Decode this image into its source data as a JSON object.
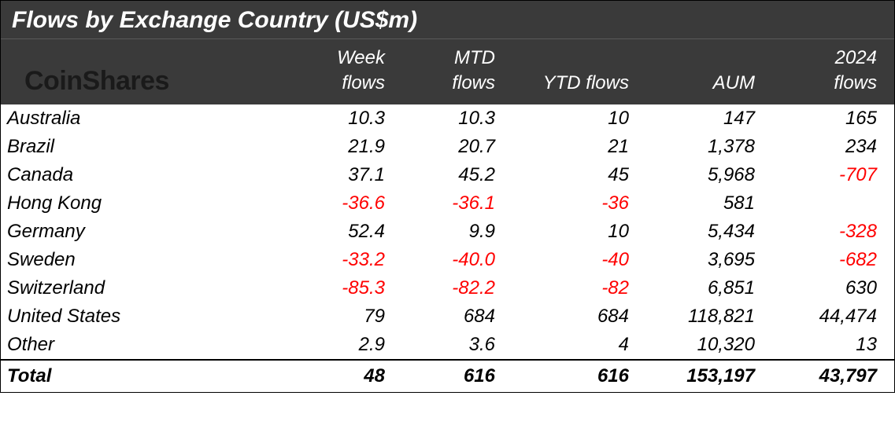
{
  "title": "Flows by Exchange Country (US$m)",
  "logo": "CoinShares",
  "columns": {
    "week": "Week flows",
    "mtd": "MTD flows",
    "ytd": "YTD flows",
    "aum": "AUM",
    "y2024": "2024 flows"
  },
  "colors": {
    "header_bg": "#3a3a3a",
    "header_text": "#ffffff",
    "body_bg": "#ffffff",
    "body_text": "#000000",
    "negative": "#ff0000",
    "logo": "#1a1a1a"
  },
  "typography": {
    "title_fontsize": 30,
    "header_fontsize": 24,
    "body_fontsize": 24,
    "logo_fontsize": 34,
    "style": "italic"
  },
  "col_widths": {
    "label": 355,
    "week": 145,
    "mtd": 140,
    "ytd": 170,
    "aum": 160,
    "y2024": 155
  },
  "rows": [
    {
      "label": "Australia",
      "week": "10.3",
      "mtd": "10.3",
      "ytd": "10",
      "aum": "147",
      "y2024": "165"
    },
    {
      "label": "Brazil",
      "week": "21.9",
      "mtd": "20.7",
      "ytd": "21",
      "aum": "1,378",
      "y2024": "234"
    },
    {
      "label": "Canada",
      "week": "37.1",
      "mtd": "45.2",
      "ytd": "45",
      "aum": "5,968",
      "y2024": "-707"
    },
    {
      "label": "Hong Kong",
      "week": "-36.6",
      "mtd": "-36.1",
      "ytd": "-36",
      "aum": "581",
      "y2024": ""
    },
    {
      "label": "Germany",
      "week": "52.4",
      "mtd": "9.9",
      "ytd": "10",
      "aum": "5,434",
      "y2024": "-328"
    },
    {
      "label": "Sweden",
      "week": "-33.2",
      "mtd": "-40.0",
      "ytd": "-40",
      "aum": "3,695",
      "y2024": "-682"
    },
    {
      "label": "Switzerland",
      "week": "-85.3",
      "mtd": "-82.2",
      "ytd": "-82",
      "aum": "6,851",
      "y2024": "630"
    },
    {
      "label": "United States",
      "week": "79",
      "mtd": "684",
      "ytd": "684",
      "aum": "118,821",
      "y2024": "44,474"
    },
    {
      "label": "Other",
      "week": "2.9",
      "mtd": "3.6",
      "ytd": "4",
      "aum": "10,320",
      "y2024": "13"
    }
  ],
  "total": {
    "label": "Total",
    "week": "48",
    "mtd": "616",
    "ytd": "616",
    "aum": "153,197",
    "y2024": "43,797"
  }
}
